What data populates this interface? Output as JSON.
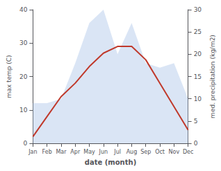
{
  "chart_data": {
    "type": "line",
    "categories": [
      "Jan",
      "Feb",
      "Mar",
      "Apr",
      "May",
      "Jun",
      "Jul",
      "Aug",
      "Sep",
      "Oct",
      "Nov",
      "Dec"
    ],
    "series": [
      {
        "type": "line",
        "color": "#c0392b",
        "values": [
          2,
          8,
          14,
          18,
          23,
          27,
          29,
          29,
          25,
          18,
          11,
          4
        ]
      },
      {
        "type": "area",
        "color": "#aec6e8",
        "axis": "y2",
        "values": [
          9,
          9,
          10,
          18,
          27,
          30,
          20,
          27,
          18,
          17,
          18,
          10
        ]
      }
    ],
    "xlabel": "date (month)",
    "ylabel": "max temp (C)",
    "y2label": "med. precipitation (kg/m2)",
    "ylim": [
      0,
      40
    ],
    "yticks": [
      0,
      10,
      20,
      30,
      40
    ],
    "y2lim": [
      0,
      30
    ],
    "y2ticks": [
      0,
      5,
      10,
      15,
      20,
      25,
      30
    ],
    "grid": false
  }
}
